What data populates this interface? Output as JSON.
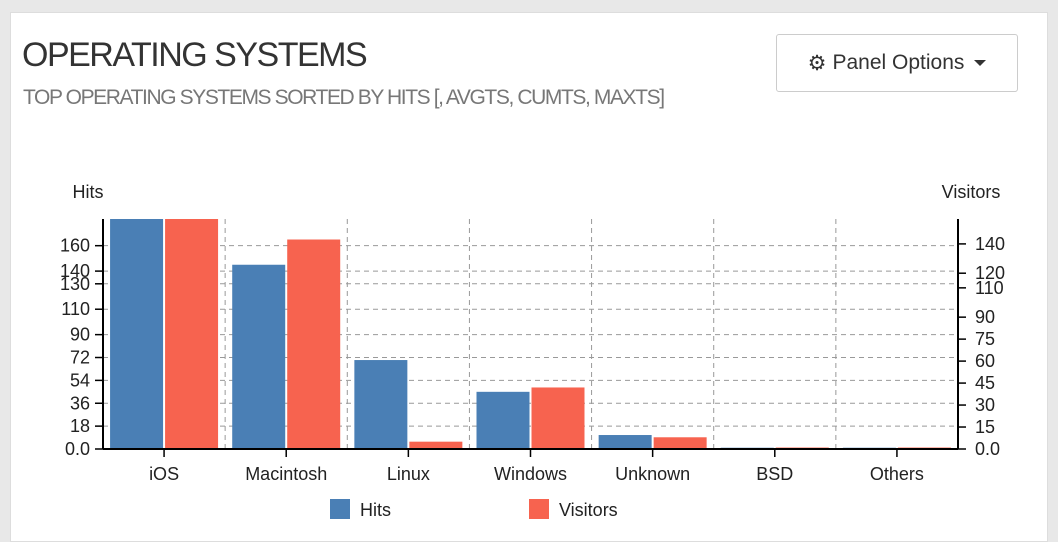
{
  "panel": {
    "title": "OPERATING SYSTEMS",
    "subtitle": "TOP OPERATING SYSTEMS SORTED BY HITS [, AVGTS, CUMTS, MAXTS]",
    "options_label": "Panel Options"
  },
  "colors": {
    "hits": "#4a7fb5",
    "visitors": "#f7634f"
  },
  "chart_data": {
    "type": "bar",
    "categories": [
      "iOS",
      "Macintosh",
      "Linux",
      "Windows",
      "Unknown",
      "BSD",
      "Others"
    ],
    "series": [
      {
        "name": "Hits",
        "axis": "left",
        "values": [
          181,
          145,
          70,
          45,
          11,
          1,
          1
        ]
      },
      {
        "name": "Visitors",
        "axis": "right",
        "values": [
          157,
          143,
          5,
          42,
          8,
          1,
          1
        ]
      }
    ],
    "ylabel_left": "Hits",
    "ylabel_right": "Visitors",
    "yticks_left": [
      "0.0",
      "18",
      "36",
      "54",
      "72",
      "90",
      "110",
      "130",
      "140",
      "160"
    ],
    "yticks_right": [
      "0.0",
      "15",
      "30",
      "45",
      "60",
      "75",
      "90",
      "110",
      "120",
      "140"
    ],
    "ylim_left": [
      0,
      181
    ],
    "ylim_right": [
      0,
      157
    ],
    "legend": [
      "Hits",
      "Visitors"
    ],
    "legend_position": "bottom",
    "grid": true
  }
}
